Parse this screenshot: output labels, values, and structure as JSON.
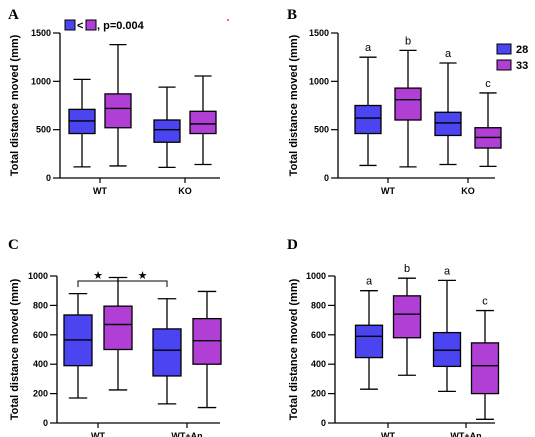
{
  "colors": {
    "blue": "#4a45f0",
    "purple": "#b13fd6",
    "stroke": "#000000"
  },
  "chart_data": [
    {
      "panel": "A",
      "type": "box",
      "ylabel": "Total distance moved (mm)",
      "ylim": [
        0,
        1500
      ],
      "yticks": [
        0,
        500,
        1000,
        1500
      ],
      "categories": [
        "WT",
        "KO"
      ],
      "boxes": [
        {
          "cat": 0,
          "color": "blue",
          "min": 115,
          "q1": 460,
          "median": 590,
          "q3": 710,
          "max": 1020
        },
        {
          "cat": 0,
          "color": "purple",
          "min": 125,
          "q1": 520,
          "median": 720,
          "q3": 870,
          "max": 1380
        },
        {
          "cat": 1,
          "color": "blue",
          "min": 110,
          "q1": 370,
          "median": 500,
          "q3": 600,
          "max": 940
        },
        {
          "cat": 1,
          "color": "purple",
          "min": 140,
          "q1": 460,
          "median": 560,
          "q3": 690,
          "max": 1055
        }
      ],
      "annotation": {
        "less_than": "<",
        "text": ", p=0.004"
      }
    },
    {
      "panel": "B",
      "type": "box",
      "ylabel": "Total distance moved (mm)",
      "ylim": [
        0,
        1500
      ],
      "yticks": [
        0,
        500,
        1000,
        1500
      ],
      "categories": [
        "WT",
        "KO"
      ],
      "boxes": [
        {
          "cat": 0,
          "color": "blue",
          "min": 130,
          "q1": 460,
          "median": 620,
          "q3": 750,
          "max": 1250,
          "letter": "a"
        },
        {
          "cat": 0,
          "color": "purple",
          "min": 115,
          "q1": 600,
          "median": 810,
          "q3": 930,
          "max": 1320,
          "letter": "b"
        },
        {
          "cat": 1,
          "color": "blue",
          "min": 140,
          "q1": 440,
          "median": 570,
          "q3": 680,
          "max": 1190,
          "letter": "a"
        },
        {
          "cat": 1,
          "color": "purple",
          "min": 120,
          "q1": 310,
          "median": 420,
          "q3": 520,
          "max": 880,
          "letter": "c"
        }
      ],
      "legend": [
        {
          "name": "28",
          "color": "blue"
        },
        {
          "name": "33",
          "color": "purple"
        }
      ],
      "legend_position": "top-right"
    },
    {
      "panel": "C",
      "type": "box",
      "ylabel": "Total distance moved (mm)",
      "ylim": [
        0,
        1000
      ],
      "yticks": [
        0,
        200,
        400,
        600,
        800,
        1000
      ],
      "categories": [
        "WT",
        "WT+An"
      ],
      "boxes": [
        {
          "cat": 0,
          "color": "blue",
          "min": 170,
          "q1": 390,
          "median": 565,
          "q3": 735,
          "max": 880
        },
        {
          "cat": 0,
          "color": "purple",
          "min": 225,
          "q1": 500,
          "median": 670,
          "q3": 795,
          "max": 990
        },
        {
          "cat": 1,
          "color": "blue",
          "min": 130,
          "q1": 320,
          "median": 495,
          "q3": 640,
          "max": 845
        },
        {
          "cat": 1,
          "color": "purple",
          "min": 105,
          "q1": 400,
          "median": 560,
          "q3": 710,
          "max": 895
        }
      ],
      "brackets": [
        {
          "from": 0,
          "to": 1,
          "label": "★"
        },
        {
          "from": 1,
          "to": 2,
          "label": "★"
        }
      ]
    },
    {
      "panel": "D",
      "type": "box",
      "ylabel": "Total distance moved (mm)",
      "ylim": [
        0,
        1000
      ],
      "yticks": [
        0,
        200,
        400,
        600,
        800,
        1000
      ],
      "categories": [
        "WT",
        "WT+An"
      ],
      "boxes": [
        {
          "cat": 0,
          "color": "blue",
          "min": 230,
          "q1": 445,
          "median": 590,
          "q3": 665,
          "max": 900,
          "letter": "a"
        },
        {
          "cat": 0,
          "color": "purple",
          "min": 325,
          "q1": 580,
          "median": 740,
          "q3": 865,
          "max": 985,
          "letter": "b"
        },
        {
          "cat": 1,
          "color": "blue",
          "min": 215,
          "q1": 385,
          "median": 495,
          "q3": 615,
          "max": 970,
          "letter": "a"
        },
        {
          "cat": 1,
          "color": "purple",
          "min": 25,
          "q1": 200,
          "median": 390,
          "q3": 545,
          "max": 765,
          "letter": "c"
        }
      ]
    }
  ]
}
